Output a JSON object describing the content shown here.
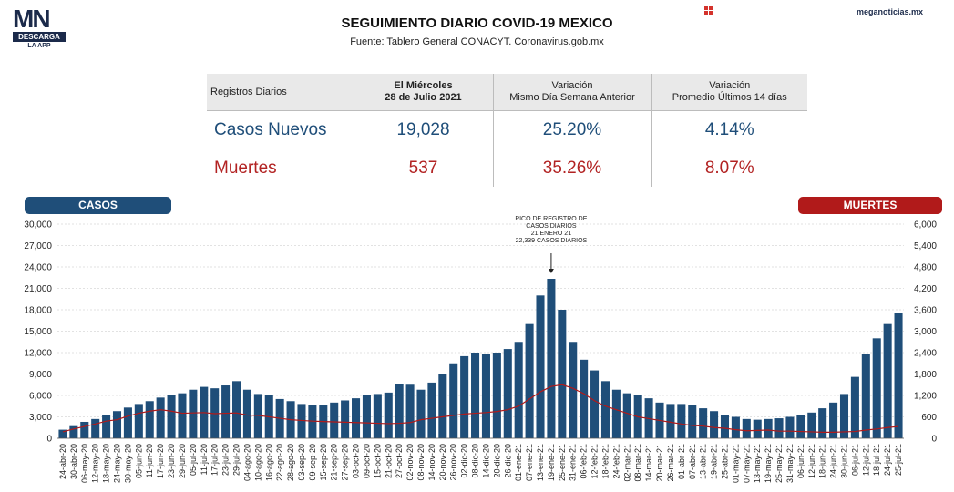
{
  "header": {
    "logo_text": "MN",
    "logo_bar": "DESCARGA",
    "logo_sub": "LA APP",
    "title": "SEGUIMIENTO DIARIO COVID-19 MEXICO",
    "subtitle": "Fuente: Tablero General CONACYT. Coronavirus.gob.mx",
    "site": "meganoticias.mx"
  },
  "table": {
    "headers": [
      "Registros Diarios",
      "El Miércoles\n28 de Julio 2021",
      "Variación\nMismo Día Semana Anterior",
      "Variación\nPromedio Últimos 14 días"
    ],
    "rows": [
      {
        "label": "Casos Nuevos",
        "value": "19,028",
        "var_week": "25.20%",
        "var_14": "4.14%"
      },
      {
        "label": "Muertes",
        "value": "537",
        "var_week": "35.26%",
        "var_14": "8.07%"
      }
    ]
  },
  "colors": {
    "cases": "#1f4e79",
    "deaths": "#b11a1a"
  },
  "chart_data": {
    "type": "bar",
    "legend_left": "CASOS",
    "legend_right": "MUERTES",
    "y_left_range": [
      0,
      30000
    ],
    "y_left_ticks": [
      "0",
      "3,000",
      "6,000",
      "9,000",
      "12,000",
      "15,000",
      "18,000",
      "21,000",
      "24,000",
      "27,000",
      "30,000"
    ],
    "y_right_range": [
      0,
      6000
    ],
    "y_right_ticks": [
      "0",
      "600",
      "1,200",
      "1,800",
      "2,400",
      "3,000",
      "3,600",
      "4,200",
      "4,800",
      "5,400",
      "6,000"
    ],
    "x_tick_labels": [
      "24-abr-20",
      "30-abr-20",
      "06-may-20",
      "12-may-20",
      "18-may-20",
      "24-may-20",
      "30-may-20",
      "05-jun-20",
      "11-jun-20",
      "17-jun-20",
      "23-jun-20",
      "29-jun-20",
      "05-jul-20",
      "11-jul-20",
      "17-jul-20",
      "23-jul-20",
      "29-jul-20",
      "04-ago-20",
      "10-ago-20",
      "16-ago-20",
      "22-ago-20",
      "28-ago-20",
      "03-sep-20",
      "09-sep-20",
      "15-sep-20",
      "21-sep-20",
      "27-sep-20",
      "03-oct-20",
      "09-oct-20",
      "15-oct-20",
      "21-oct-20",
      "27-oct-20",
      "02-nov-20",
      "08-nov-20",
      "14-nov-20",
      "20-nov-20",
      "26-nov-20",
      "02-dic-20",
      "08-dic-20",
      "14-dic-20",
      "20-dic-20",
      "26-dic-20",
      "01-ene-21",
      "07-ene-21",
      "13-ene-21",
      "19-ene-21",
      "25-ene-21",
      "31-ene-21",
      "06-feb-21",
      "12-feb-21",
      "18-feb-21",
      "24-feb-21",
      "02-mar-21",
      "08-mar-21",
      "14-mar-21",
      "20-mar-21",
      "26-mar-21",
      "01-abr-21",
      "07-abr-21",
      "13-abr-21",
      "19-abr-21",
      "25-abr-21",
      "01-may-21",
      "07-may-21",
      "13-may-21",
      "19-may-21",
      "25-may-21",
      "31-may-21",
      "06-jun-21",
      "12-jun-21",
      "18-jun-21",
      "24-jun-21",
      "30-jun-21",
      "06-jul-21",
      "12-jul-21",
      "18-jul-21",
      "24-jul-21",
      "25-jul-21"
    ],
    "annotation": [
      "PICO DE REGISTRO DE",
      "CASOS DIARIOS",
      "21 ENERO 21",
      "22,339 CASOS DIARIOS"
    ],
    "annotation_index": 45,
    "series": [
      {
        "name": "CASOS",
        "axis": "left",
        "type": "bar",
        "values": [
          1200,
          1700,
          2300,
          2700,
          3200,
          3800,
          4300,
          4800,
          5200,
          5700,
          6000,
          6300,
          6800,
          7200,
          7000,
          7400,
          8000,
          6800,
          6200,
          6000,
          5500,
          5200,
          4800,
          4600,
          4700,
          5000,
          5300,
          5600,
          6000,
          6200,
          6400,
          7600,
          7500,
          6800,
          7800,
          9000,
          10500,
          11500,
          12000,
          11800,
          12000,
          12500,
          13500,
          16000,
          20000,
          22339,
          18000,
          13500,
          11000,
          9500,
          8000,
          6800,
          6300,
          6000,
          5600,
          5000,
          4800,
          4800,
          4600,
          4200,
          3800,
          3300,
          3000,
          2700,
          2600,
          2700,
          2800,
          3000,
          3300,
          3600,
          4200,
          5000,
          6200,
          8600,
          11800,
          14000,
          16000,
          17500
        ]
      },
      {
        "name": "MUERTES",
        "axis": "right",
        "type": "line",
        "values": [
          180,
          260,
          330,
          400,
          480,
          520,
          620,
          700,
          760,
          800,
          760,
          700,
          710,
          720,
          690,
          700,
          710,
          650,
          640,
          600,
          560,
          520,
          500,
          480,
          470,
          460,
          450,
          440,
          430,
          420,
          410,
          420,
          440,
          520,
          560,
          600,
          640,
          680,
          700,
          720,
          750,
          800,
          900,
          1100,
          1300,
          1450,
          1500,
          1400,
          1250,
          1050,
          900,
          800,
          700,
          600,
          550,
          500,
          450,
          400,
          360,
          340,
          300,
          280,
          240,
          210,
          220,
          230,
          200,
          200,
          190,
          180,
          170,
          170,
          180,
          190,
          230,
          260,
          300,
          330
        ]
      }
    ]
  }
}
